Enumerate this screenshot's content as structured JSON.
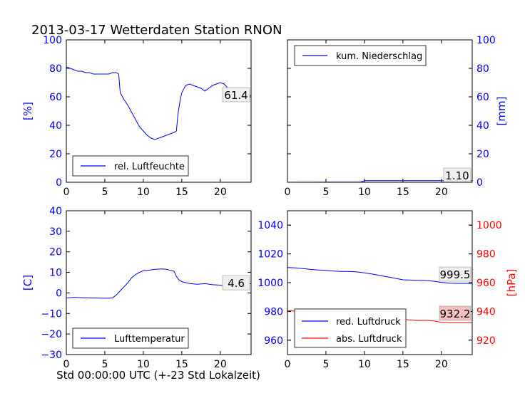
{
  "title": "2013-03-17 Wetterdaten Station RNON",
  "xlabel": "Std 00:00:00 UTC (+-23 Std Lokalzeit)",
  "colors": {
    "axis_text": "#0000ff",
    "primary": "#0000ff",
    "secondary": "#ff0000",
    "value_box_bg": "#f0f0f0",
    "value_box_red": "#f4c0c0"
  },
  "chart_data": [
    {
      "type": "line",
      "panel": "humidity",
      "ylabel": "[%]",
      "xlim": [
        0,
        24
      ],
      "ylim": [
        0,
        100
      ],
      "x_ticks": [
        "0",
        "5",
        "10",
        "15",
        "20"
      ],
      "y_ticks": [
        "0",
        "20",
        "40",
        "60",
        "80",
        "100"
      ],
      "legend_position": "lower-left",
      "value_label": "61.4",
      "series": [
        {
          "name": "rel. Luftfeuchte",
          "color": "#0000ff",
          "x": [
            0,
            0.5,
            1,
            1.5,
            2,
            2.5,
            3,
            3.5,
            4,
            4.5,
            5,
            5.5,
            6,
            6.5,
            6.8,
            7,
            7.5,
            8,
            8.5,
            9,
            9.5,
            10,
            10.5,
            11,
            11.5,
            12,
            12.5,
            13,
            13.5,
            14,
            14.3,
            14.5,
            14.8,
            15,
            15.5,
            16,
            16.5,
            17,
            17.5,
            18,
            18.5,
            19,
            19.5,
            20,
            20.5,
            21,
            21.5,
            22,
            22.5,
            23,
            23.5,
            24
          ],
          "y": [
            81,
            80,
            79,
            78,
            78,
            77,
            77,
            76,
            76,
            76,
            76,
            76,
            77,
            77,
            76,
            63,
            58,
            54,
            49,
            44,
            39,
            36,
            33,
            31,
            30,
            31,
            32,
            33,
            34,
            35,
            36,
            48,
            58,
            63,
            68,
            69,
            68,
            67,
            66,
            64,
            66,
            68,
            69,
            70,
            69,
            66,
            64,
            62,
            61,
            61,
            61,
            61
          ]
        }
      ]
    },
    {
      "type": "line",
      "panel": "precipitation",
      "ylabel": "[mm]",
      "xlim": [
        0,
        24
      ],
      "ylim": [
        0,
        100
      ],
      "x_ticks": [
        "0",
        "5",
        "10",
        "15",
        "20"
      ],
      "y_ticks": [
        "0",
        "20",
        "40",
        "60",
        "80",
        "100"
      ],
      "legend_position": "upper-left",
      "value_label": "1.10",
      "series": [
        {
          "name": "kum. Niederschlag",
          "color": "#0000ff",
          "x": [
            0,
            9.5,
            10,
            24
          ],
          "y": [
            0,
            0.2,
            1.1,
            1.1
          ]
        }
      ]
    },
    {
      "type": "line",
      "panel": "temperature",
      "ylabel": "[C]",
      "xlim": [
        0,
        24
      ],
      "ylim": [
        -30,
        40
      ],
      "x_ticks": [
        "0",
        "5",
        "10",
        "15",
        "20"
      ],
      "y_ticks": [
        "−30",
        "−20",
        "−10",
        "0",
        "10",
        "20",
        "30",
        "40"
      ],
      "legend_position": "lower-left",
      "value_label": "4.6",
      "series": [
        {
          "name": "Lufttemperatur",
          "color": "#0000ff",
          "x": [
            0,
            0.5,
            1,
            2,
            3,
            4,
            5,
            5.5,
            6,
            6.5,
            7,
            7.5,
            8,
            8.5,
            9,
            9.5,
            10,
            10.5,
            11,
            11.5,
            12,
            12.5,
            13,
            13.5,
            14,
            14.3,
            14.6,
            15,
            15.5,
            16,
            17,
            18,
            19,
            20,
            21,
            22,
            23,
            24
          ],
          "y": [
            -2.5,
            -2.3,
            -2.2,
            -2.3,
            -2.4,
            -2.5,
            -2.6,
            -2.6,
            -2.4,
            -1,
            1,
            3,
            5,
            7.5,
            9,
            10,
            10.8,
            11,
            11.2,
            11.5,
            11.6,
            11.7,
            11.5,
            11,
            10.5,
            8,
            6.5,
            5.5,
            5,
            4.6,
            4.2,
            4.5,
            4,
            3.8,
            3.6,
            3.9,
            4.3,
            4.6
          ]
        }
      ]
    },
    {
      "type": "line",
      "panel": "pressure",
      "ylabel": "[hPa]",
      "xlim": [
        0,
        24
      ],
      "ylim_left": [
        950,
        1050
      ],
      "ylim_right": [
        910,
        1010
      ],
      "x_ticks": [
        "0",
        "5",
        "10",
        "15",
        "20"
      ],
      "y_ticks_left": [
        "960",
        "980",
        "1000",
        "1020",
        "1040"
      ],
      "y_ticks_right": [
        "920",
        "940",
        "960",
        "980",
        "1000"
      ],
      "legend_position": "lower-left",
      "value_labels": [
        "999.5",
        "932.2"
      ],
      "series": [
        {
          "name": "red. Luftdruck",
          "axis": "left",
          "color": "#0000ff",
          "x": [
            0,
            1,
            2,
            3,
            4,
            5,
            6,
            7,
            8,
            9,
            10,
            11,
            12,
            13,
            14,
            15,
            16,
            17,
            18,
            19,
            20,
            21,
            22,
            23,
            24
          ],
          "y": [
            1010.5,
            1010.3,
            1009.8,
            1009.2,
            1008.8,
            1008.5,
            1008,
            1007.8,
            1007.8,
            1007.5,
            1006.8,
            1006,
            1005,
            1004,
            1003,
            1002,
            1001.8,
            1001.6,
            1001.5,
            1001,
            1000.2,
            999.6,
            999.5,
            999.5,
            999.5
          ]
        },
        {
          "name": "abs. Luftdruck",
          "axis": "right",
          "color": "#ff0000",
          "x": [
            0,
            1,
            2,
            3,
            4,
            5,
            6,
            7,
            7.5,
            8,
            9,
            10,
            11,
            12,
            13,
            14,
            15,
            16,
            17,
            18,
            19,
            20,
            21,
            22,
            23,
            24
          ],
          "y": [
            940.5,
            940.2,
            939.8,
            939.3,
            939,
            938.6,
            938.2,
            939,
            939.6,
            939.8,
            940,
            939.7,
            939.3,
            938.5,
            937.6,
            936.6,
            934.5,
            934,
            933.6,
            933.8,
            933.4,
            932.4,
            932.2,
            932.2,
            932.2,
            932.2
          ]
        }
      ]
    }
  ]
}
